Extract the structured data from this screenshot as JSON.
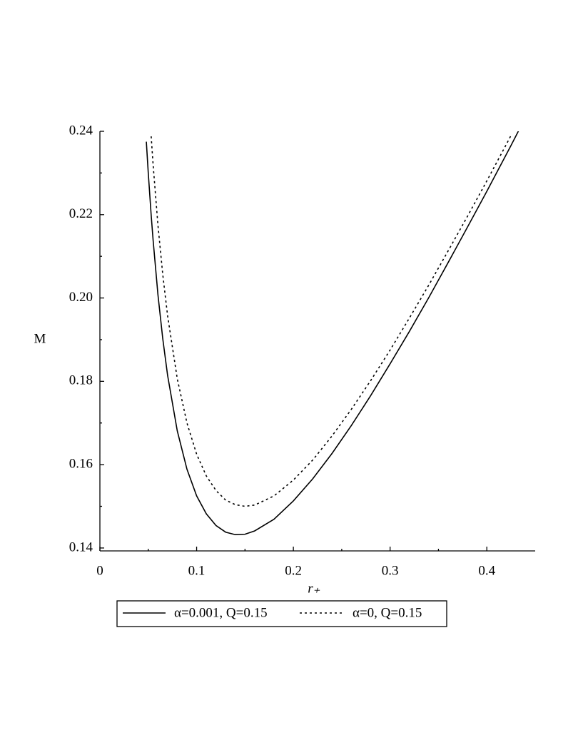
{
  "chart_data": {
    "type": "line",
    "xlabel": "r₊",
    "ylabel": "M",
    "x": [
      0.048,
      0.05,
      0.053,
      0.055,
      0.06,
      0.065,
      0.07,
      0.08,
      0.09,
      0.1,
      0.11,
      0.12,
      0.13,
      0.14,
      0.15,
      0.16,
      0.18,
      0.2,
      0.22,
      0.24,
      0.26,
      0.28,
      0.3,
      0.32,
      0.34,
      0.36,
      0.38,
      0.4,
      0.42,
      0.425,
      0.433
    ],
    "series": [
      {
        "name": "α=0.001, Q=0.15",
        "color": "#000000",
        "dash": "solid",
        "values": [
          0.2375,
          0.23,
          0.2199,
          0.2139,
          0.2008,
          0.1902,
          0.1814,
          0.1681,
          0.1589,
          0.1525,
          0.1482,
          0.1454,
          0.1438,
          0.1432,
          0.1433,
          0.1441,
          0.1469,
          0.1513,
          0.1566,
          0.1627,
          0.1694,
          0.1766,
          0.1842,
          0.192,
          0.2001,
          0.2085,
          0.217,
          0.2256,
          0.2344,
          0.2366,
          0.2402
        ]
      },
      {
        "name": "α=0, Q=0.15",
        "color": "#000000",
        "dash": "dotted",
        "values": [
          null,
          null,
          0.2388,
          0.232,
          0.2175,
          0.2056,
          0.1957,
          0.1806,
          0.17,
          0.1625,
          0.1573,
          0.1538,
          0.1515,
          0.1504,
          0.15,
          0.1503,
          0.1525,
          0.1563,
          0.1611,
          0.1669,
          0.1733,
          0.1802,
          0.1875,
          0.1952,
          0.2031,
          0.2113,
          0.2196,
          0.2281,
          0.2368,
          0.239,
          null
        ]
      }
    ],
    "xlim": [
      0,
      0.45
    ],
    "ylim": [
      0.1393,
      0.24
    ],
    "xticks": [
      0,
      0.1,
      0.2,
      0.3,
      0.4
    ],
    "yticks": [
      0.14,
      0.16,
      0.18,
      {
        "value": 0.2,
        "label": "0.20"
      },
      0.22,
      0.24
    ],
    "xminorticks": [
      0.05,
      0.15,
      0.25,
      0.35
    ],
    "yminorticks": [
      0.15,
      0.17,
      0.19,
      0.21,
      0.23
    ],
    "legend": "bottom",
    "grid": false
  }
}
